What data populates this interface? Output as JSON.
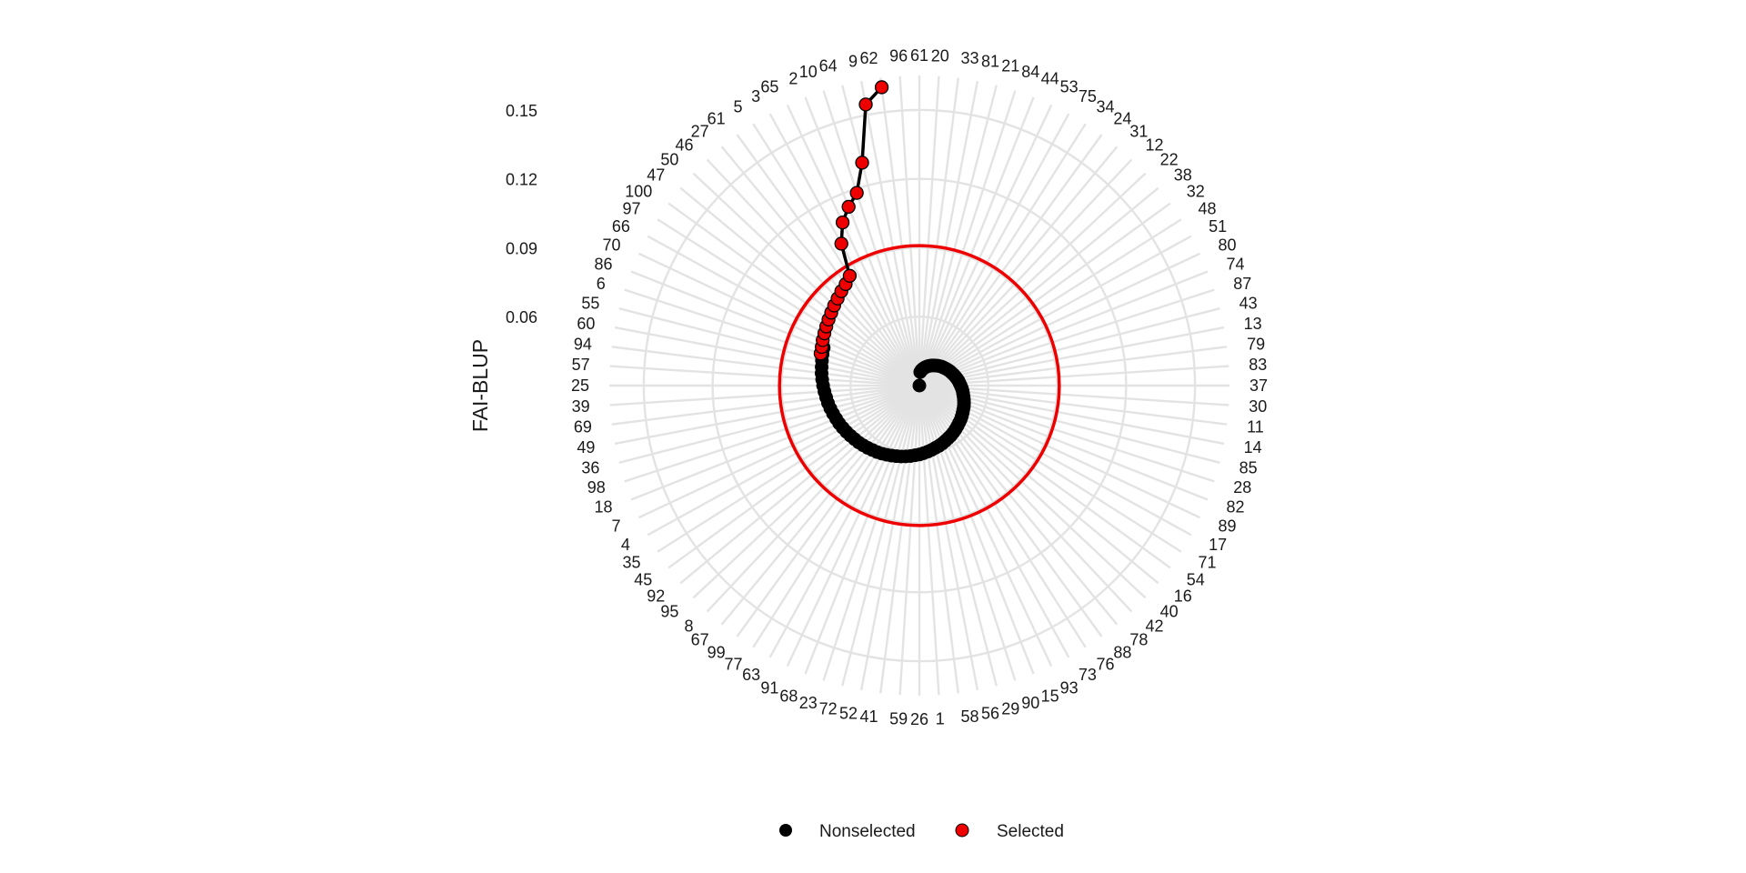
{
  "chart_data": {
    "type": "scatter",
    "coordinate_system": "polar",
    "ylabel": "FAI-BLUP",
    "r_ticks": [
      0.06,
      0.09,
      0.12,
      0.15
    ],
    "r_min": 0.03,
    "r_max": 0.165,
    "grid": true,
    "legend_position": "bottom",
    "selection_threshold": 0.0909,
    "categories": [
      61,
      20,
      33,
      81,
      21,
      84,
      44,
      53,
      75,
      34,
      24,
      31,
      12,
      22,
      38,
      32,
      48,
      51,
      80,
      74,
      87,
      43,
      13,
      79,
      83,
      37,
      30,
      11,
      14,
      85,
      28,
      82,
      89,
      17,
      71,
      54,
      16,
      40,
      42,
      78,
      88,
      76,
      73,
      93,
      15,
      90,
      29,
      56,
      58,
      1,
      26,
      59,
      41,
      52,
      72,
      23,
      68,
      91,
      63,
      77,
      99,
      67,
      8,
      95,
      92,
      45,
      35,
      4,
      7,
      18,
      98,
      36,
      49,
      69,
      39,
      25,
      57,
      94,
      60,
      55,
      6,
      86,
      70,
      66,
      97,
      100,
      47,
      50,
      46,
      27,
      61,
      5,
      3,
      65,
      2,
      10,
      64,
      9,
      62,
      96
    ],
    "series": [
      {
        "name": "Nonselected",
        "color": "#000000",
        "values": [
          0.03,
          0.0359,
          0.0367,
          0.0373,
          0.0378,
          0.0384,
          0.0389,
          0.0394,
          0.0399,
          0.0404,
          0.0408,
          0.0413,
          0.0418,
          0.0423,
          0.0428,
          0.0432,
          0.0437,
          0.0442,
          0.0447,
          0.0451,
          0.0456,
          0.0461,
          0.0466,
          0.0471,
          0.0475,
          0.048,
          0.0485,
          0.049,
          0.0494,
          0.0499,
          0.0504,
          0.0509,
          0.0514,
          0.0518,
          0.0523,
          0.0528,
          0.0533,
          0.0537,
          0.0542,
          0.0547,
          0.0552,
          0.0557,
          0.0561,
          0.0566,
          0.0571,
          0.0576,
          0.058,
          0.0585,
          0.059,
          0.0595,
          0.06,
          0.0604,
          0.0609,
          0.0614,
          0.0619,
          0.0623,
          0.0628,
          0.0633,
          0.0638,
          0.0643,
          0.0647,
          0.0652,
          0.0657,
          0.0662,
          0.0666,
          0.0671,
          0.0676,
          0.0681,
          0.0686,
          0.069,
          0.0695,
          0.07,
          0.0705,
          0.0709,
          0.0714,
          0.0719,
          0.0724,
          0.0729,
          0.0733,
          0.0738,
          0.0743,
          0.0748,
          null,
          null,
          null,
          null,
          null,
          null,
          null,
          null,
          null,
          null,
          null,
          null,
          null,
          null,
          null,
          null,
          null,
          null
        ]
      },
      {
        "name": "Selected",
        "color": "#ee0000",
        "values": [
          null,
          null,
          null,
          null,
          null,
          null,
          null,
          null,
          null,
          null,
          null,
          null,
          null,
          null,
          null,
          null,
          null,
          null,
          null,
          null,
          null,
          null,
          null,
          null,
          null,
          null,
          null,
          null,
          null,
          null,
          null,
          null,
          null,
          null,
          null,
          null,
          null,
          null,
          null,
          null,
          null,
          null,
          null,
          null,
          null,
          null,
          null,
          null,
          null,
          null,
          null,
          null,
          null,
          null,
          null,
          null,
          null,
          null,
          null,
          null,
          null,
          null,
          null,
          null,
          null,
          null,
          null,
          null,
          null,
          null,
          null,
          null,
          null,
          null,
          null,
          null,
          null,
          null,
          null,
          null,
          0.0752,
          0.0757,
          0.0765,
          0.0772,
          0.078,
          0.0789,
          0.0798,
          0.0809,
          0.082,
          0.0833,
          0.0846,
          0.0866,
          0.1005,
          0.1085,
          0.1137,
          0.1182,
          0.1302,
          0.1546,
          0.1609,
          null
        ]
      }
    ]
  }
}
